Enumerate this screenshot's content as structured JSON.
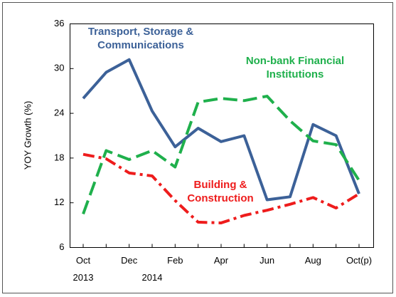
{
  "chart_data": {
    "type": "line",
    "y_label": "YOY Growth (%)",
    "categories": [
      "Oct",
      null,
      "Dec",
      null,
      "Feb",
      null,
      "Apr",
      null,
      "Jun",
      null,
      "Aug",
      null,
      "Oct(p)"
    ],
    "year_labels": [
      "2013",
      "2014"
    ],
    "ylim": [
      6,
      36
    ],
    "yticks": [
      6,
      12,
      18,
      24,
      30,
      36
    ],
    "series": [
      {
        "name": "Transport, Storage & Communications",
        "color": "#3c6198",
        "style": "solid",
        "values": [
          26,
          29.5,
          31.2,
          24.3,
          19.5,
          22,
          20.2,
          21,
          12.4,
          12.8,
          22.5,
          21,
          13.2
        ]
      },
      {
        "name": "Non-bank Financial Institutions",
        "color": "#1fb04c",
        "style": "dashed",
        "values": [
          10.5,
          19,
          17.8,
          19,
          16.8,
          25.5,
          26,
          25.7,
          26.3,
          23,
          20.3,
          19.8,
          15
        ]
      },
      {
        "name": "Building & Construction",
        "color": "#ee1c1c",
        "style": "dashdot",
        "values": [
          18.5,
          17.9,
          16,
          15.6,
          12.3,
          9.4,
          9.3,
          10.3,
          11,
          11.8,
          12.7,
          11.3,
          13.2
        ]
      }
    ]
  }
}
